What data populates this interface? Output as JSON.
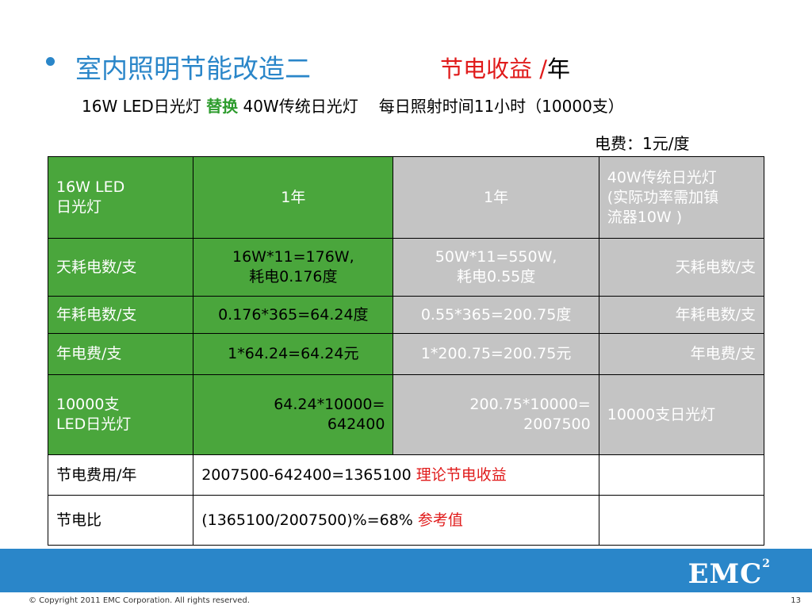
{
  "header": {
    "title": "室内照明节能改造二",
    "title2_main": "节电收益 ",
    "title2_slash": "/",
    "title2_year": "年",
    "subtitle_part1": "16W LED日光灯 ",
    "subtitle_green": "替换",
    "subtitle_part2": " 40W传统日光灯",
    "subtitle_part3": "每日照射时间11小时（10000支）",
    "fee": "电费：1元/度"
  },
  "table": {
    "rows": [
      [
        "16W LED\n日光灯",
        "1年",
        "1年",
        "40W传统日光灯\n(实际功率需加镇\n流器10W )"
      ],
      [
        "天耗电数/支",
        "16W*11=176W,\n耗电0.176度",
        "50W*11=550W,\n耗电0.55度",
        "天耗电数/支"
      ],
      [
        "年耗电数/支",
        "0.176*365=64.24度",
        "0.55*365=200.75度",
        "年耗电数/支"
      ],
      [
        "年电费/支",
        "1*64.24=64.24元",
        "1*200.75=200.75元",
        "年电费/支"
      ],
      [
        "10000支\nLED日光灯",
        "64.24*10000=\n642400",
        "200.75*10000=\n2007500",
        "10000支日光灯"
      ]
    ],
    "savings_label": "节电费用/年",
    "savings_value": "2007500-642400=1365100 ",
    "savings_note": "理论节电收益",
    "ratio_label": "节电比",
    "ratio_value": "(1365100/2007500)%=68% ",
    "ratio_note": "参考值"
  },
  "footer": {
    "copyright": "© Copyright 2011 EMC Corporation. All rights reserved.",
    "page": "13",
    "logo": "EMC",
    "logo_sup": "2"
  },
  "colors": {
    "accent": "#2a86c9",
    "green": "#4aa63c",
    "gray": "#c4c4c4",
    "red": "#e01b1b"
  }
}
